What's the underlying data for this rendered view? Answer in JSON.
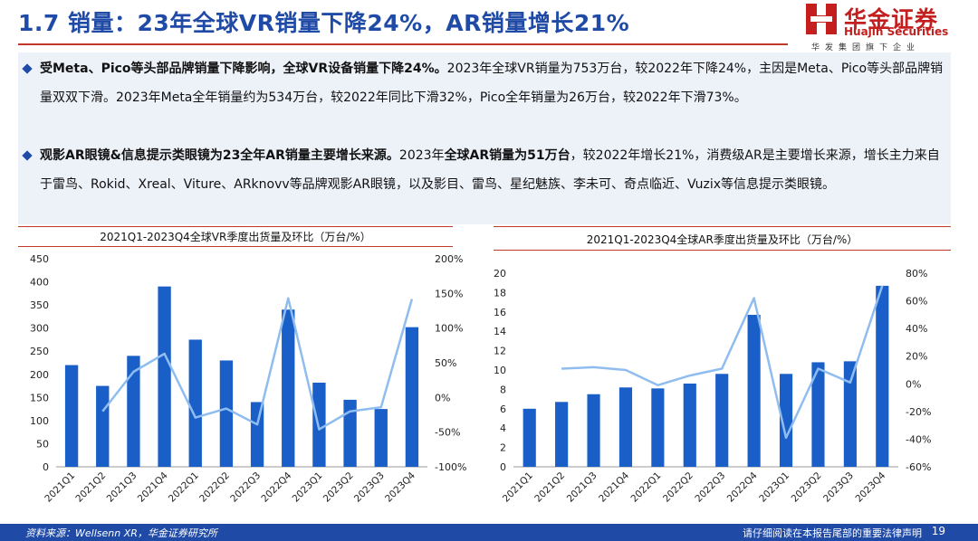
{
  "header": {
    "title": "1.7 销量：23年全球VR销量下降24%，AR销量增长21%",
    "logo_cn": "华金证券",
    "logo_en": "Huajin Securities",
    "logo_sub": "华发集团旗下企业"
  },
  "bullets": [
    {
      "bold": "受Meta、Pico等头部品牌销量下降影响，全球VR设备销量下降24%。",
      "text": "2023年全球VR销量为753万台，较2022年下降24%，主因是Meta、Pico等头部品牌销量双双下滑。2023年Meta全年销量约为534万台，较2022年同比下滑32%，Pico全年销量为26万台，较2022年下滑73%。"
    },
    {
      "bold": "观影AR眼镜&信息提示类眼镜为23全年AR销量主要增长来源。",
      "text_a": "2023年",
      "bold2": "全球AR销量为51万台",
      "text_b": "，较2022年增长21%，消费级AR是主要增长来源，增长主力来自于雷鸟、Rokid、Xreal、Viture、ARknovv等品牌观影AR眼镜，以及影目、雷鸟、星纪魅族、李未可、奇点临近、Vuzix等信息提示类眼镜。"
    }
  ],
  "colors": {
    "bar": "#1a5fc8",
    "line": "#8fbdf0",
    "accent": "#1f4aa6",
    "rule": "#c0392b"
  },
  "chart_data": [
    {
      "type": "bar",
      "title": "2021Q1-2023Q4全球VR季度出货量及环比（万台/%）",
      "categories": [
        "2021Q1",
        "2021Q2",
        "2021Q3",
        "2021Q4",
        "2022Q1",
        "2022Q2",
        "2022Q3",
        "2022Q4",
        "2023Q1",
        "2023Q2",
        "2023Q3",
        "2023Q4"
      ],
      "series": [
        {
          "kind": "bar",
          "axis": "left",
          "values": [
            220,
            175,
            240,
            390,
            275,
            230,
            140,
            340,
            182,
            145,
            125,
            302
          ]
        },
        {
          "kind": "line",
          "axis": "right",
          "values": [
            null,
            -20,
            37,
            63,
            -29,
            -16,
            -39,
            143,
            -46,
            -20,
            -14,
            142
          ]
        }
      ],
      "ylim_left": [
        0,
        450
      ],
      "yticks_left": [
        0,
        50,
        100,
        150,
        200,
        250,
        300,
        350,
        400,
        450
      ],
      "ylim_right": [
        -100,
        200
      ],
      "yticks_right": [
        -100,
        -50,
        0,
        50,
        100,
        150,
        200
      ],
      "ytick_labels_right": [
        "-100%",
        "-50%",
        "0%",
        "50%",
        "100%",
        "150%",
        "200%"
      ],
      "legend": "none",
      "grid": false
    },
    {
      "type": "bar",
      "title": "2021Q1-2023Q4全球AR季度出货量及环比（万台/%）",
      "categories": [
        "2021Q1",
        "2021Q2",
        "2021Q3",
        "2021Q4",
        "2022Q1",
        "2022Q2",
        "2022Q3",
        "2022Q4",
        "2023Q1",
        "2023Q2",
        "2023Q3",
        "2023Q4"
      ],
      "series": [
        {
          "kind": "bar",
          "axis": "left",
          "values": [
            6,
            6.7,
            7.5,
            8.2,
            8.1,
            8.6,
            9.6,
            15.7,
            9.6,
            10.8,
            10.9,
            18.7
          ]
        },
        {
          "kind": "line",
          "axis": "right",
          "values": [
            null,
            11,
            12,
            10,
            -1,
            6,
            11,
            62,
            -39,
            11,
            1,
            71
          ]
        }
      ],
      "ylim_left": [
        0,
        20
      ],
      "yticks_left": [
        0,
        2,
        4,
        6,
        8,
        10,
        12,
        14,
        16,
        18,
        20
      ],
      "ylim_right": [
        -60,
        80
      ],
      "yticks_right": [
        -60,
        -40,
        -20,
        0,
        20,
        40,
        60,
        80
      ],
      "ytick_labels_right": [
        "-60%",
        "-40%",
        "-20%",
        "0%",
        "20%",
        "40%",
        "60%",
        "80%"
      ],
      "legend": "none",
      "grid": false
    }
  ],
  "footer": {
    "source": "资料来源：Wellsenn XR，华金证券研究所",
    "disclaimer": "请仔细阅读在本报告尾部的重要法律声明",
    "page": "19"
  }
}
